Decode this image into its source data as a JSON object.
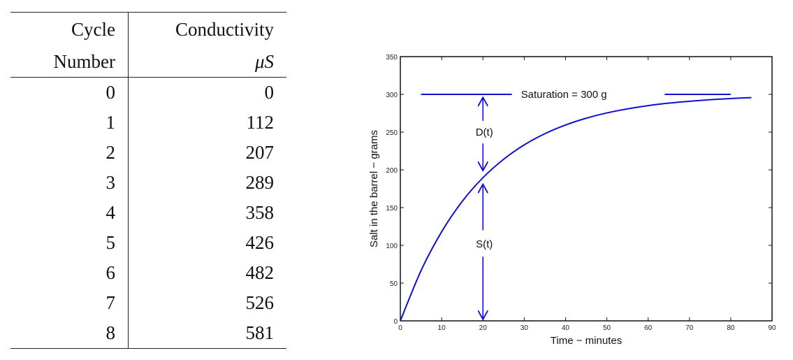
{
  "table": {
    "headers": [
      [
        "Cycle",
        "Conductivity"
      ],
      [
        "Number",
        "μS"
      ]
    ],
    "rows": [
      [
        "0",
        "0"
      ],
      [
        "1",
        "112"
      ],
      [
        "2",
        "207"
      ],
      [
        "3",
        "289"
      ],
      [
        "4",
        "358"
      ],
      [
        "5",
        "426"
      ],
      [
        "6",
        "482"
      ],
      [
        "7",
        "526"
      ],
      [
        "8",
        "581"
      ]
    ]
  },
  "chart_data": {
    "type": "line",
    "title": "",
    "xlabel": "Time − minutes",
    "ylabel": "Salt in the barrel − grams",
    "xlim": [
      0,
      90
    ],
    "ylim": [
      0,
      350
    ],
    "xticks": [
      "0",
      "10",
      "20",
      "30",
      "40",
      "50",
      "60",
      "70",
      "80",
      "90"
    ],
    "yticks": [
      "0",
      "50",
      "100",
      "150",
      "200",
      "250",
      "300",
      "350"
    ],
    "grid": false,
    "series": [
      {
        "name": "S(t)",
        "color": "#1010d0",
        "x": [
          0,
          5,
          10,
          15,
          20,
          25,
          30,
          35,
          40,
          45,
          50,
          55,
          60,
          65,
          70,
          75,
          80,
          85
        ],
        "y": [
          0,
          66.4,
          118.0,
          158.3,
          189.6,
          214.0,
          233.1,
          247.9,
          259.4,
          268.4,
          275.4,
          280.8,
          285.1,
          288.4,
          290.9,
          292.9,
          294.5,
          295.7
        ]
      }
    ],
    "saturation": {
      "label": "Saturation = 300 g",
      "value": 300,
      "segments": [
        [
          5,
          27
        ],
        [
          64,
          80
        ]
      ]
    },
    "annotations": [
      {
        "label": "D(t)",
        "x": 20,
        "y": 250
      },
      {
        "label": "S(t)",
        "x": 20,
        "y": 102
      }
    ]
  }
}
